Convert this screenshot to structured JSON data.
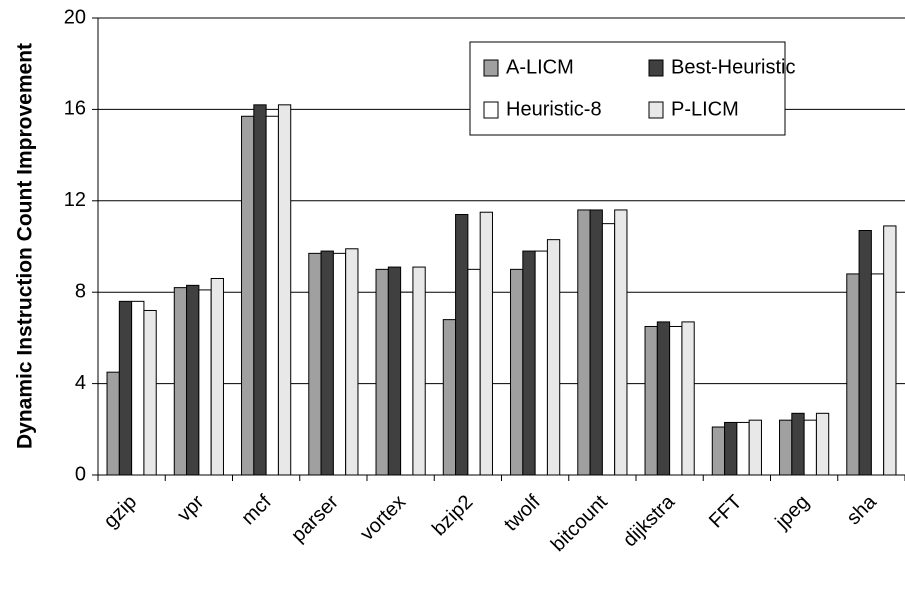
{
  "chart_data": {
    "type": "bar",
    "ylabel": "Dynamic Instruction Count Improvement",
    "categories": [
      "gzip",
      "vpr",
      "mcf",
      "parser",
      "vortex",
      "bzip2",
      "twolf",
      "bitcount",
      "dijkstra",
      "FFT",
      "jpeg",
      "sha"
    ],
    "series": [
      {
        "name": "A-LICM",
        "color": "#a0a0a0",
        "values": [
          4.5,
          8.2,
          15.7,
          9.7,
          9.0,
          6.8,
          9.0,
          11.6,
          6.5,
          2.1,
          2.4,
          8.8
        ]
      },
      {
        "name": "Best-Heuristic",
        "color": "#404040",
        "values": [
          7.6,
          8.3,
          16.2,
          9.8,
          9.1,
          11.4,
          9.8,
          11.6,
          6.7,
          2.3,
          2.7,
          10.7
        ]
      },
      {
        "name": "Heuristic-8",
        "color": "#ffffff",
        "values": [
          7.6,
          8.1,
          15.7,
          9.7,
          8.0,
          9.0,
          9.8,
          11.0,
          6.5,
          2.3,
          2.4,
          8.8
        ]
      },
      {
        "name": "P-LICM",
        "color": "#e8e8e8",
        "values": [
          7.2,
          8.6,
          16.2,
          9.9,
          9.1,
          11.5,
          10.3,
          11.6,
          6.7,
          2.4,
          2.7,
          10.9
        ]
      }
    ],
    "ylim": [
      0,
      20
    ],
    "yticks": [
      0,
      4,
      8,
      12,
      16,
      20
    ],
    "grid": true,
    "legend": "upper-right"
  }
}
